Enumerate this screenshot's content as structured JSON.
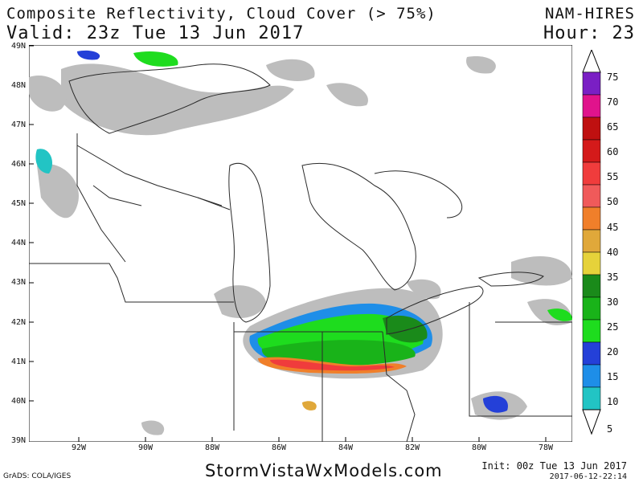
{
  "header": {
    "title": "Composite Reflectivity, Cloud Cover (> 75%)",
    "valid": "Valid: 23z Tue 13 Jun 2017",
    "model": "NAM-HIRES",
    "hour": "Hour: 23"
  },
  "footer": {
    "grads": "GrADS: COLA/IGES",
    "site": "StormVistaWxModels.com",
    "init": "Init: 00z Tue 13 Jun 2017",
    "timestamp": "2017-06-12-22:14"
  },
  "axes": {
    "lat_labels": [
      "49N",
      "48N",
      "47N",
      "46N",
      "45N",
      "44N",
      "43N",
      "42N",
      "41N",
      "40N",
      "39N"
    ],
    "lon_labels": [
      "92W",
      "90W",
      "88W",
      "86W",
      "84W",
      "82W",
      "80W",
      "78W"
    ]
  },
  "legend": {
    "labels": [
      "75",
      "70",
      "65",
      "60",
      "55",
      "50",
      "45",
      "40",
      "35",
      "30",
      "25",
      "20",
      "15",
      "10",
      "5"
    ],
    "colors": [
      "#7a1fc4",
      "#e0138c",
      "#bf1010",
      "#d41a1a",
      "#f03c3c",
      "#f05a5a",
      "#f07f2a",
      "#e0a83a",
      "#e6d23a",
      "#1a8a1a",
      "#19b319",
      "#1edc1e",
      "#2440d8",
      "#1e8ee8",
      "#22c4c4"
    ]
  },
  "map": {
    "cloud_color": "#bdbdbd",
    "boundary_color": "#2a2a2a"
  }
}
